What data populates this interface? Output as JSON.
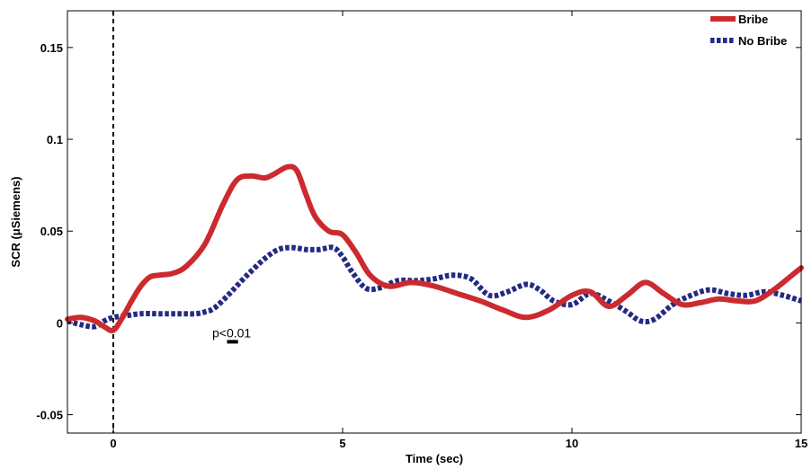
{
  "chart_data": {
    "type": "line",
    "title": "",
    "xlabel": "Time (sec)",
    "ylabel": "SCR (μSiemens)",
    "xlim": [
      -1,
      15
    ],
    "ylim": [
      -0.06,
      0.17
    ],
    "xticks": [
      0,
      5,
      10,
      15
    ],
    "xtick_labels": [
      "0",
      "5",
      "10",
      "15"
    ],
    "yticks": [
      -0.05,
      0,
      0.05,
      0.1,
      0.15
    ],
    "ytick_labels": [
      "-0.05",
      "0",
      "0.05",
      "0.1",
      "0.15"
    ],
    "grid": false,
    "legend_position": "top-right",
    "vline_x": 0,
    "annotation": {
      "text": "p<0.01",
      "x": 2.6,
      "y": -0.008,
      "bar_x": [
        2.48,
        2.72
      ]
    },
    "series": [
      {
        "name": "Bribe",
        "color": "#cc2a2f",
        "style": "solid",
        "x": [
          -1,
          -0.7,
          -0.4,
          -0.2,
          0,
          0.2,
          0.4,
          0.6,
          0.8,
          1.0,
          1.3,
          1.6,
          2.0,
          2.4,
          2.7,
          3.0,
          3.3,
          3.5,
          3.8,
          4.0,
          4.2,
          4.4,
          4.7,
          5.0,
          5.3,
          5.6,
          6.0,
          6.5,
          7.0,
          7.5,
          8.0,
          8.5,
          9.0,
          9.5,
          10.0,
          10.4,
          10.8,
          11.2,
          11.6,
          12.0,
          12.4,
          12.8,
          13.2,
          13.6,
          14.0,
          14.4,
          14.8,
          15.0
        ],
        "y": [
          0.002,
          0.003,
          0.001,
          -0.002,
          -0.004,
          0.003,
          0.012,
          0.02,
          0.025,
          0.026,
          0.027,
          0.031,
          0.043,
          0.065,
          0.078,
          0.08,
          0.079,
          0.081,
          0.085,
          0.083,
          0.07,
          0.058,
          0.05,
          0.048,
          0.038,
          0.026,
          0.02,
          0.022,
          0.02,
          0.016,
          0.012,
          0.007,
          0.003,
          0.007,
          0.015,
          0.017,
          0.009,
          0.015,
          0.022,
          0.016,
          0.01,
          0.011,
          0.013,
          0.012,
          0.012,
          0.018,
          0.026,
          0.03
        ]
      },
      {
        "name": "No Bribe",
        "color": "#232a82",
        "style": "dotted",
        "x": [
          -1,
          -0.7,
          -0.4,
          -0.2,
          0,
          0.3,
          0.6,
          1.0,
          1.5,
          1.8,
          2.0,
          2.2,
          2.5,
          2.8,
          3.0,
          3.3,
          3.6,
          3.9,
          4.2,
          4.5,
          4.8,
          5.0,
          5.2,
          5.5,
          5.8,
          6.2,
          6.6,
          7.0,
          7.4,
          7.8,
          8.2,
          8.6,
          9.0,
          9.3,
          9.6,
          10.0,
          10.4,
          10.8,
          11.2,
          11.5,
          11.8,
          12.2,
          12.6,
          13.0,
          13.4,
          13.8,
          14.2,
          14.6,
          15.0
        ],
        "y": [
          0.001,
          -0.001,
          -0.002,
          0.001,
          0.003,
          0.004,
          0.005,
          0.005,
          0.005,
          0.005,
          0.006,
          0.008,
          0.015,
          0.023,
          0.028,
          0.035,
          0.04,
          0.041,
          0.04,
          0.04,
          0.041,
          0.036,
          0.028,
          0.019,
          0.019,
          0.023,
          0.023,
          0.024,
          0.026,
          0.024,
          0.015,
          0.017,
          0.021,
          0.018,
          0.012,
          0.01,
          0.016,
          0.012,
          0.006,
          0.001,
          0.002,
          0.01,
          0.015,
          0.018,
          0.016,
          0.015,
          0.017,
          0.015,
          0.012
        ]
      }
    ]
  }
}
